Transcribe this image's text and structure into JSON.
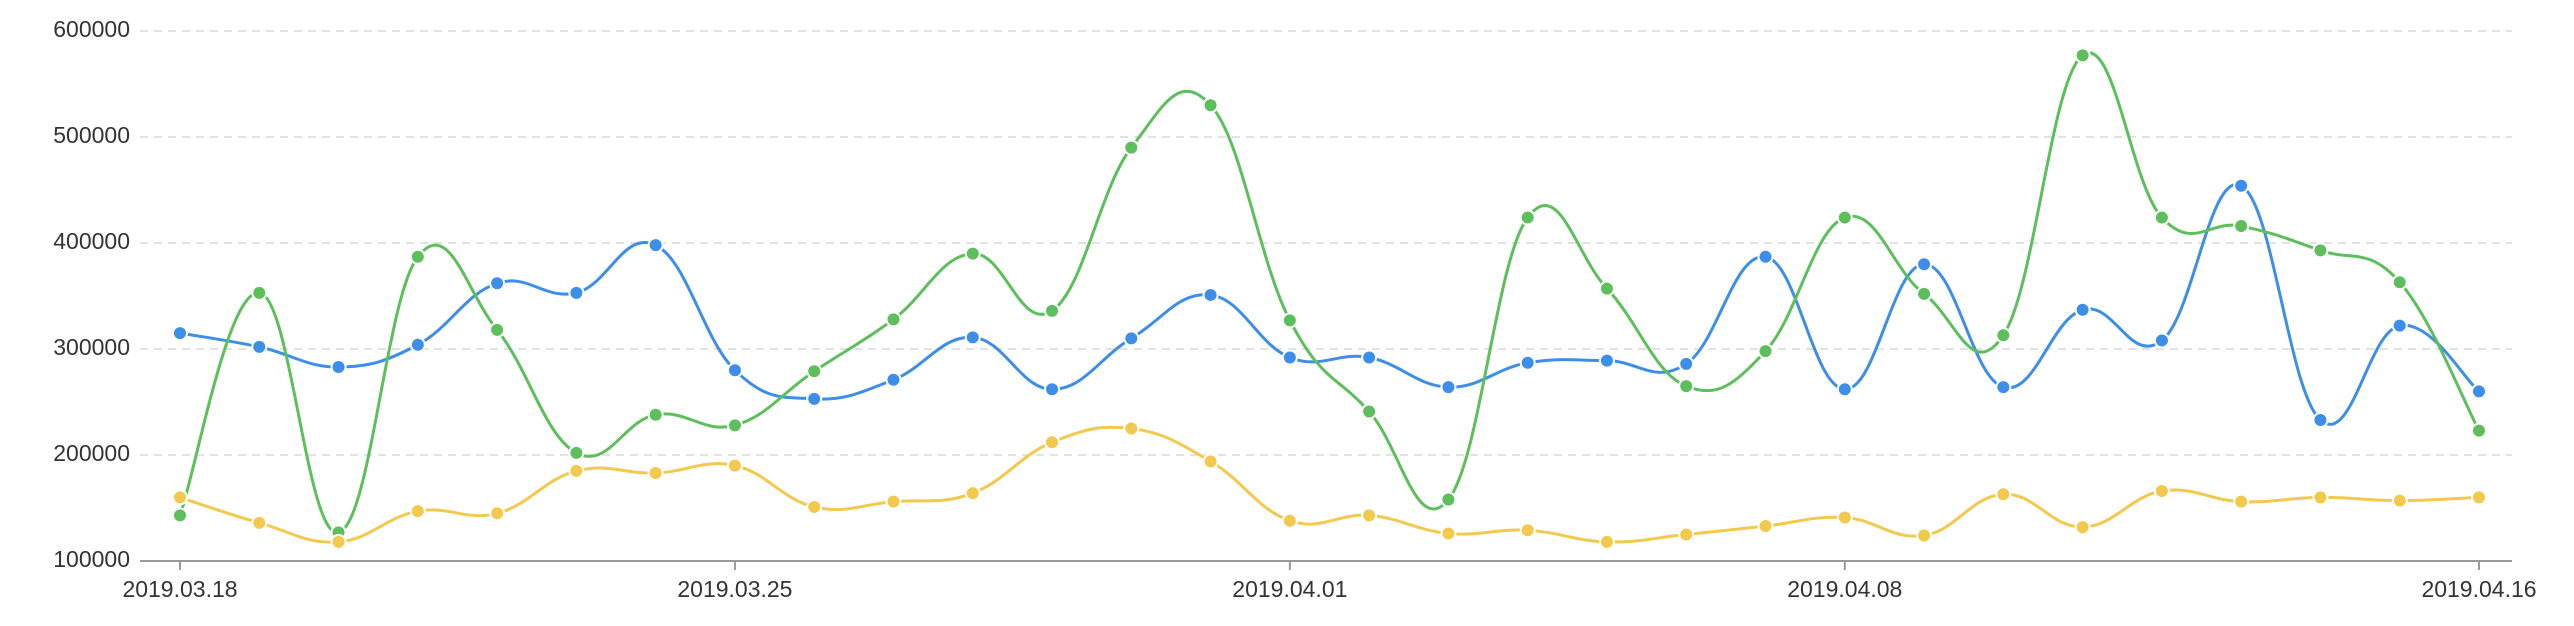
{
  "chart_data": {
    "type": "line",
    "categories": [
      "2019.03.18",
      null,
      null,
      null,
      null,
      null,
      null,
      "2019.03.25",
      null,
      null,
      null,
      null,
      null,
      null,
      "2019.04.01",
      null,
      null,
      null,
      null,
      null,
      null,
      "2019.04.08",
      null,
      null,
      null,
      null,
      null,
      null,
      null,
      "2019.04.16"
    ],
    "series": [
      {
        "color": "#3d8ee8",
        "values": [
          315000,
          302000,
          283000,
          304000,
          362000,
          353000,
          398000,
          280000,
          253000,
          271000,
          311000,
          262000,
          310000,
          351000,
          292000,
          292000,
          264000,
          287000,
          289000,
          286000,
          387000,
          262000,
          380000,
          264000,
          337000,
          308000,
          454000,
          233000,
          322000,
          260000
        ]
      },
      {
        "color": "#5cbf5c",
        "values": [
          143000,
          353000,
          127000,
          387000,
          318000,
          202000,
          238000,
          228000,
          279000,
          328000,
          390000,
          336000,
          490000,
          530000,
          327000,
          241000,
          158000,
          424000,
          357000,
          265000,
          298000,
          424000,
          352000,
          313000,
          577000,
          424000,
          416000,
          393000,
          363000,
          223000
        ]
      },
      {
        "color": "#f2c94c",
        "values": [
          160000,
          136000,
          118000,
          147000,
          145000,
          185000,
          183000,
          190000,
          151000,
          156000,
          164000,
          212000,
          225000,
          194000,
          138000,
          143000,
          126000,
          129000,
          118000,
          125000,
          133000,
          141000,
          124000,
          163000,
          132000,
          166000,
          156000,
          160000,
          157000,
          160000
        ]
      }
    ],
    "ylim": [
      100000,
      600000
    ],
    "yticks": [
      100000,
      200000,
      300000,
      400000,
      500000,
      600000
    ],
    "grid": true
  }
}
